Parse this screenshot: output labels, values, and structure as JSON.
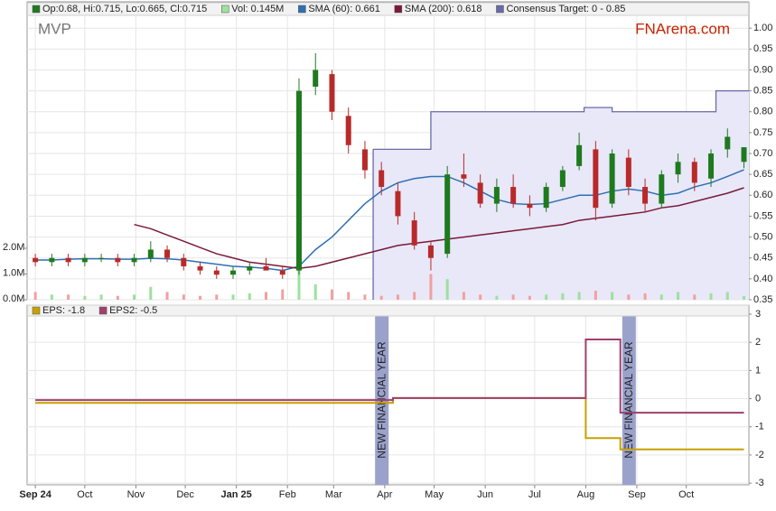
{
  "chart_data": [
    {
      "type": "ohlc",
      "title": "MVP",
      "watermark": "FNArena.com",
      "ohlc_label": "Op:0.68, Hi:0.715, Lo:0.665, Cl:0.715",
      "up_color": "#1f7a1f",
      "down_color": "#b82a2a",
      "x": [
        0,
        10,
        20,
        30,
        40,
        50,
        60,
        70,
        80,
        90,
        100,
        110,
        120,
        130,
        140,
        150,
        160,
        170,
        180,
        190,
        200,
        210,
        220,
        230,
        240,
        250,
        260,
        270,
        280,
        290,
        300,
        310,
        320,
        330,
        340,
        350,
        360,
        370,
        380,
        390,
        400,
        410,
        420,
        430
      ],
      "open": [
        0.45,
        0.44,
        0.45,
        0.44,
        0.45,
        0.45,
        0.44,
        0.45,
        0.47,
        0.45,
        0.43,
        0.42,
        0.41,
        0.42,
        0.43,
        0.42,
        0.42,
        0.86,
        0.89,
        0.79,
        0.71,
        0.66,
        0.61,
        0.54,
        0.48,
        0.46,
        0.65,
        0.63,
        0.58,
        0.62,
        0.58,
        0.57,
        0.62,
        0.67,
        0.71,
        0.58,
        0.69,
        0.62,
        0.58,
        0.65,
        0.68,
        0.64,
        0.71,
        0.68
      ],
      "high": [
        0.46,
        0.46,
        0.46,
        0.46,
        0.46,
        0.46,
        0.46,
        0.49,
        0.48,
        0.46,
        0.44,
        0.43,
        0.43,
        0.44,
        0.45,
        0.43,
        0.88,
        0.94,
        0.9,
        0.81,
        0.73,
        0.68,
        0.63,
        0.56,
        0.49,
        0.67,
        0.7,
        0.65,
        0.64,
        0.65,
        0.6,
        0.63,
        0.67,
        0.75,
        0.73,
        0.71,
        0.71,
        0.64,
        0.66,
        0.7,
        0.69,
        0.71,
        0.76,
        0.715
      ],
      "low": [
        0.43,
        0.43,
        0.43,
        0.43,
        0.44,
        0.43,
        0.43,
        0.44,
        0.44,
        0.42,
        0.41,
        0.4,
        0.4,
        0.41,
        0.42,
        0.4,
        0.41,
        0.84,
        0.78,
        0.7,
        0.64,
        0.6,
        0.53,
        0.47,
        0.42,
        0.45,
        0.62,
        0.57,
        0.56,
        0.57,
        0.55,
        0.56,
        0.61,
        0.66,
        0.54,
        0.57,
        0.6,
        0.56,
        0.57,
        0.63,
        0.61,
        0.62,
        0.69,
        0.665
      ],
      "close": [
        0.44,
        0.45,
        0.44,
        0.45,
        0.45,
        0.44,
        0.45,
        0.47,
        0.45,
        0.43,
        0.42,
        0.41,
        0.42,
        0.43,
        0.42,
        0.41,
        0.85,
        0.9,
        0.8,
        0.72,
        0.66,
        0.62,
        0.55,
        0.48,
        0.45,
        0.65,
        0.64,
        0.58,
        0.62,
        0.58,
        0.57,
        0.62,
        0.66,
        0.72,
        0.57,
        0.7,
        0.62,
        0.58,
        0.65,
        0.68,
        0.63,
        0.7,
        0.74,
        0.715
      ],
      "volume": {
        "name": "Vol: 0.145M",
        "axis": "y2",
        "color": "#9ee09e",
        "up_color": "#9ee09e",
        "down_color": "#f2a0a0",
        "values": [
          0.3,
          0.2,
          0.2,
          0.15,
          0.2,
          0.15,
          0.2,
          0.5,
          0.3,
          0.2,
          0.15,
          0.2,
          0.2,
          0.25,
          0.3,
          0.4,
          2.2,
          0.6,
          0.4,
          0.3,
          0.2,
          0.15,
          0.2,
          0.3,
          1.0,
          0.8,
          0.3,
          0.2,
          0.15,
          0.2,
          0.15,
          0.2,
          0.25,
          0.3,
          0.35,
          0.3,
          0.2,
          0.25,
          0.2,
          0.3,
          0.2,
          0.25,
          0.3,
          0.145
        ]
      },
      "series": [
        {
          "name": "SMA (60): 0.661",
          "color": "#2e6fb2",
          "values": [
            0.445,
            0.445,
            0.447,
            0.448,
            0.448,
            0.447,
            0.447,
            0.449,
            0.448,
            0.445,
            0.44,
            0.435,
            0.43,
            0.428,
            0.425,
            0.42,
            0.43,
            0.47,
            0.5,
            0.54,
            0.58,
            0.61,
            0.63,
            0.64,
            0.645,
            0.645,
            0.63,
            0.61,
            0.59,
            0.58,
            0.578,
            0.58,
            0.59,
            0.6,
            0.6,
            0.61,
            0.615,
            0.61,
            0.6,
            0.605,
            0.62,
            0.63,
            0.645,
            0.661
          ]
        },
        {
          "name": "SMA (200): 0.618",
          "color": "#7a1a3a",
          "values": [
            null,
            null,
            null,
            null,
            null,
            null,
            0.53,
            0.52,
            0.505,
            0.49,
            0.475,
            0.46,
            0.45,
            0.44,
            0.435,
            0.43,
            0.425,
            0.43,
            0.44,
            0.45,
            0.46,
            0.47,
            0.48,
            0.485,
            0.49,
            0.495,
            0.5,
            0.505,
            0.51,
            0.515,
            0.52,
            0.525,
            0.53,
            0.54,
            0.545,
            0.55,
            0.555,
            0.56,
            0.57,
            0.575,
            0.585,
            0.595,
            0.605,
            0.618
          ]
        }
      ],
      "target": {
        "name": "Consensus Target: 0 - 0.85",
        "color": "#6a6aa8",
        "fill": "#e8e8f8",
        "x": [
          205,
          240,
          333,
          350,
          413,
          433
        ],
        "values": [
          0.71,
          0.8,
          0.81,
          0.8,
          0.85,
          0.85
        ]
      },
      "xlim": [
        -5,
        433
      ],
      "xticks": [
        {
          "value": 0,
          "label": "Sep 24"
        },
        {
          "value": 30,
          "label": "Oct"
        },
        {
          "value": 61,
          "label": "Nov"
        },
        {
          "value": 91,
          "label": "Dec"
        },
        {
          "value": 122,
          "label": "Jan 25"
        },
        {
          "value": 153,
          "label": "Feb"
        },
        {
          "value": 181,
          "label": "Mar"
        },
        {
          "value": 212,
          "label": "Apr"
        },
        {
          "value": 242,
          "label": "May"
        },
        {
          "value": 273,
          "label": "Jun"
        },
        {
          "value": 303,
          "label": "Jul"
        },
        {
          "value": 334,
          "label": "Aug"
        },
        {
          "value": 365,
          "label": "Sep"
        },
        {
          "value": 395,
          "label": "Oct"
        }
      ],
      "ylim": [
        0.35,
        1.035
      ],
      "yticks": [
        0.35,
        {
          "value": 0.4,
          "label": "0.40"
        },
        0.45,
        {
          "value": 0.5,
          "label": "0.50"
        },
        0.55,
        {
          "value": 0.6,
          "label": "0.60"
        },
        0.65,
        {
          "value": 0.7,
          "label": "0.70"
        },
        0.75,
        {
          "value": 0.8,
          "label": "0.80"
        },
        0.85,
        {
          "value": 0.9,
          "label": "0.90"
        },
        0.95,
        {
          "value": 1,
          "label": "1.00"
        }
      ],
      "y2lim": [
        0,
        11.12
      ],
      "y2ticks": [
        {
          "value": 0,
          "label": "0.0M"
        },
        {
          "value": 1,
          "label": "1.0M"
        },
        {
          "value": 2,
          "label": "2.0M"
        }
      ],
      "grid": true
    },
    {
      "type": "step",
      "x": [
        0,
        217,
        334,
        355,
        430
      ],
      "series": [
        {
          "name": "EPS: -1.8",
          "color": "#c8a000",
          "values": [
            -0.15,
            0.02,
            -1.4,
            -1.8,
            -1.8
          ]
        },
        {
          "name": "EPS2: -0.5",
          "color": "#a0406e",
          "values": [
            -0.05,
            0.02,
            2.1,
            -0.5,
            -0.5
          ]
        }
      ],
      "annotations": [
        {
          "text": "NEW FINANCIAL YEAR",
          "x": 210
        },
        {
          "text": "NEW FINANCIAL YEAR",
          "x": 360
        }
      ],
      "ylim": [
        -3.06,
        3.32
      ],
      "yticks": [
        3,
        2,
        1,
        0,
        -1,
        -2,
        -3
      ],
      "grid": true
    }
  ]
}
